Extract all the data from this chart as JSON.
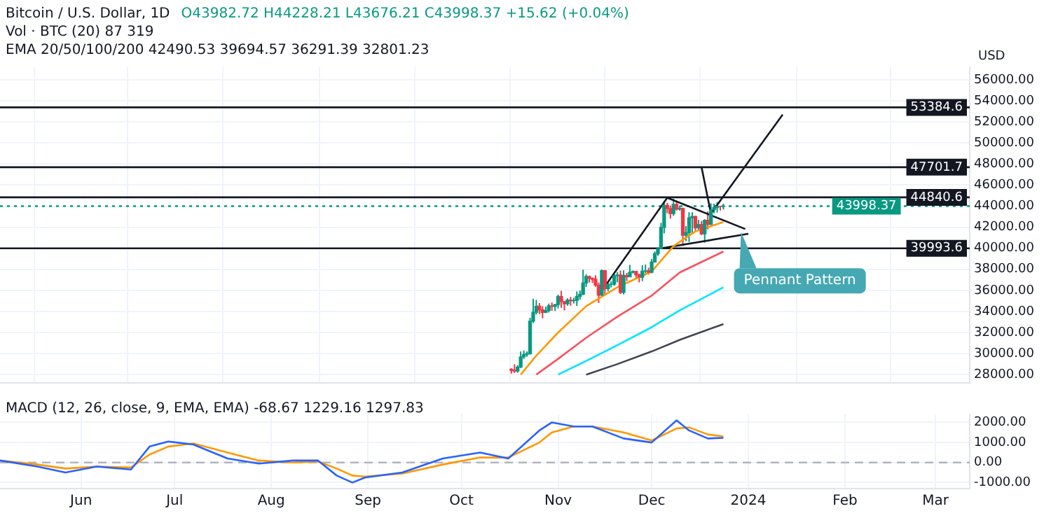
{
  "chart_data": [
    {
      "type": "candlestick",
      "title": "Bitcoin / U.S. Dollar, 1D",
      "subtitle": "O43982.72 H44228.21 L43676.21 C43998.37 +15.62 (+0.04%)",
      "annotations": [
        "Vol · BTC (20) 87 319",
        "EMA 20/50/100/200 42490.53 39694.57 36291.39 32801.23",
        {
          "text": "Pennant Pattern",
          "x": "2023-12-31",
          "y": 41830
        }
      ],
      "x": [
        "2023-10-17",
        "2023-10-18",
        "2023-10-19",
        "2023-10-20",
        "2023-10-21",
        "2023-10-22",
        "2023-10-23",
        "2023-10-24",
        "2023-10-25",
        "2023-10-26",
        "2023-10-27",
        "2023-10-28",
        "2023-10-29",
        "2023-10-30",
        "2023-10-31",
        "2023-11-01",
        "2023-11-02",
        "2023-11-03",
        "2023-11-04",
        "2023-11-05",
        "2023-11-06",
        "2023-11-07",
        "2023-11-08",
        "2023-11-09",
        "2023-11-10",
        "2023-11-11",
        "2023-11-12",
        "2023-11-13",
        "2023-11-14",
        "2023-11-15",
        "2023-11-16",
        "2023-11-17",
        "2023-11-18",
        "2023-11-19",
        "2023-11-20",
        "2023-11-21",
        "2023-11-22",
        "2023-11-23",
        "2023-11-24",
        "2023-11-25",
        "2023-11-26",
        "2023-11-27",
        "2023-11-28",
        "2023-11-29",
        "2023-11-30",
        "2023-12-01",
        "2023-12-02",
        "2023-12-03",
        "2023-12-04",
        "2023-12-05",
        "2023-12-06",
        "2023-12-07",
        "2023-12-08",
        "2023-12-09",
        "2023-12-10",
        "2023-12-11",
        "2023-12-12",
        "2023-12-13",
        "2023-12-14",
        "2023-12-15",
        "2023-12-16",
        "2023-12-17",
        "2023-12-18",
        "2023-12-19",
        "2023-12-20",
        "2023-12-21",
        "2023-12-22",
        "2023-12-23",
        "2023-12-24"
      ],
      "ohlc": [
        [
          28500,
          28610,
          28100,
          28410
        ],
        [
          28410,
          28980,
          28150,
          28330
        ],
        [
          28330,
          28900,
          28180,
          28720
        ],
        [
          28720,
          30200,
          28620,
          29680
        ],
        [
          29680,
          30300,
          29500,
          29910
        ],
        [
          29910,
          30200,
          29700,
          29990
        ],
        [
          29990,
          33400,
          29900,
          33080
        ],
        [
          33080,
          35200,
          32900,
          33920
        ],
        [
          33920,
          35100,
          33700,
          34500
        ],
        [
          34500,
          34800,
          33750,
          34150
        ],
        [
          34150,
          34500,
          33350,
          33900
        ],
        [
          33900,
          34450,
          33850,
          34090
        ],
        [
          34090,
          34750,
          33900,
          34530
        ],
        [
          34530,
          34850,
          34070,
          34480
        ],
        [
          34480,
          34720,
          34050,
          34650
        ],
        [
          34650,
          35600,
          34300,
          35420
        ],
        [
          35420,
          35950,
          34350,
          34940
        ],
        [
          34940,
          34950,
          34100,
          34730
        ],
        [
          34730,
          35250,
          34550,
          35080
        ],
        [
          35080,
          35380,
          34550,
          35020
        ],
        [
          35020,
          35300,
          34750,
          35050
        ],
        [
          35050,
          35900,
          34530,
          35430
        ],
        [
          35430,
          35990,
          35100,
          35630
        ],
        [
          35630,
          37970,
          35550,
          36700
        ],
        [
          36700,
          37530,
          36320,
          37320
        ],
        [
          37320,
          37400,
          36750,
          37140
        ],
        [
          37140,
          37230,
          36710,
          37060
        ],
        [
          37060,
          37430,
          36340,
          36500
        ],
        [
          36500,
          36750,
          34800,
          35550
        ],
        [
          35550,
          37980,
          35360,
          37880
        ],
        [
          37880,
          37930,
          35550,
          36160
        ],
        [
          36160,
          36850,
          35910,
          36590
        ],
        [
          36590,
          36870,
          36280,
          36590
        ],
        [
          36590,
          37540,
          36430,
          37390
        ],
        [
          37390,
          37750,
          36770,
          37470
        ],
        [
          37470,
          37880,
          35650,
          35810
        ],
        [
          35810,
          37900,
          35620,
          37420
        ],
        [
          37420,
          37660,
          36880,
          37290
        ],
        [
          37290,
          38420,
          37260,
          37720
        ],
        [
          37720,
          37890,
          37600,
          37800
        ],
        [
          37800,
          37830,
          37160,
          37480
        ],
        [
          37480,
          37600,
          36750,
          37250
        ],
        [
          37250,
          38400,
          36880,
          37830
        ],
        [
          37830,
          38450,
          37620,
          37860
        ],
        [
          37860,
          38150,
          37500,
          37720
        ],
        [
          37720,
          38990,
          37620,
          38690
        ],
        [
          38690,
          39700,
          38650,
          39480
        ],
        [
          39480,
          40000,
          39280,
          39970
        ],
        [
          39970,
          42420,
          39970,
          41990
        ],
        [
          41990,
          44490,
          41420,
          44080
        ],
        [
          44080,
          44300,
          43330,
          43770
        ],
        [
          43770,
          44050,
          42820,
          43290
        ],
        [
          43290,
          44700,
          43080,
          44170
        ],
        [
          44170,
          44400,
          43580,
          43720
        ],
        [
          43720,
          44050,
          43560,
          43790
        ],
        [
          43790,
          43850,
          40220,
          41240
        ],
        [
          41240,
          42100,
          40680,
          41490
        ],
        [
          41490,
          43430,
          40600,
          42890
        ],
        [
          42890,
          43420,
          41420,
          43020
        ],
        [
          43020,
          43090,
          41660,
          41940
        ],
        [
          41940,
          42700,
          41720,
          42260
        ],
        [
          42260,
          42600,
          41250,
          41370
        ],
        [
          41370,
          42760,
          40530,
          42660
        ],
        [
          42660,
          43500,
          41800,
          42270
        ],
        [
          42270,
          44280,
          42200,
          43660
        ],
        [
          43660,
          44240,
          43330,
          43860
        ],
        [
          43860,
          44400,
          43400,
          43990
        ],
        [
          43990,
          44020,
          43580,
          43982.72
        ],
        [
          43982.72,
          44228.21,
          43676.21,
          43998.37
        ]
      ],
      "series": [
        {
          "type": "line",
          "color": "#ff9800",
          "x": [
            "2023-10-20",
            "2023-10-25",
            "2023-11-01",
            "2023-11-10",
            "2023-11-20",
            "2023-12-01",
            "2023-12-08",
            "2023-12-15",
            "2023-12-24"
          ],
          "values": [
            28000,
            29800,
            32000,
            34500,
            36300,
            37800,
            40200,
            41600,
            42490.53
          ]
        },
        {
          "type": "line",
          "color": "#f7525f",
          "x": [
            "2023-10-25",
            "2023-11-01",
            "2023-11-10",
            "2023-11-20",
            "2023-12-01",
            "2023-12-10",
            "2023-12-24"
          ],
          "values": [
            28000,
            29500,
            31500,
            33500,
            35500,
            37700,
            39694.57
          ]
        },
        {
          "type": "line",
          "color": "#00e5ff",
          "x": [
            "2023-11-01",
            "2023-11-10",
            "2023-11-20",
            "2023-12-01",
            "2023-12-10",
            "2023-12-24"
          ],
          "values": [
            28000,
            29300,
            30800,
            32500,
            34100,
            36291.39
          ]
        },
        {
          "type": "line",
          "color": "#434651",
          "x": [
            "2023-11-10",
            "2023-11-20",
            "2023-12-01",
            "2023-12-10",
            "2023-12-24"
          ],
          "values": [
            28000,
            29000,
            30200,
            31300,
            32801.23
          ]
        },
        {
          "type": "line",
          "color": "#131722",
          "x": [
            "2023-11-14",
            "2023-12-06"
          ],
          "values": [
            35540,
            44800
          ]
        },
        {
          "type": "line",
          "color": "#131722",
          "x": [
            "2023-12-06",
            "2023-12-31"
          ],
          "values": [
            44800,
            41830
          ]
        },
        {
          "type": "line",
          "color": "#131722",
          "x": [
            "2023-12-04",
            "2024-01-01"
          ],
          "values": [
            40000,
            41370
          ]
        },
        {
          "type": "line",
          "color": "#131722",
          "x": [
            "2023-12-20",
            "2024-01-12"
          ],
          "values": [
            43300,
            52700
          ]
        },
        {
          "type": "line",
          "color": "#131722",
          "x": [
            "2023-12-17",
            "2023-12-20"
          ],
          "values": [
            47700,
            43300
          ]
        }
      ],
      "ref_lines": [
        {
          "axis": "y",
          "value": 53384.6,
          "label": "53384.6",
          "color": "#131722"
        },
        {
          "axis": "y",
          "value": 47701.7,
          "label": "47701.7",
          "color": "#131722"
        },
        {
          "axis": "y",
          "value": 44840.6,
          "label": "44840.6",
          "color": "#131722"
        },
        {
          "axis": "y",
          "value": 39993.6,
          "label": "39993.6",
          "color": "#131722"
        },
        {
          "axis": "y",
          "value": 43998.37,
          "label": "43998.37",
          "color": "#089981",
          "line_style": "dotted"
        }
      ],
      "xlim": [
        "2023-05-06",
        "2024-03-12"
      ],
      "xticks": [
        {
          "value": "2023-06-01",
          "label": null
        },
        {
          "value": "2023-07-01",
          "label": null
        },
        {
          "value": "2023-08-01",
          "label": null
        },
        {
          "value": "2023-09-01",
          "label": null
        },
        {
          "value": "2023-10-01",
          "label": null
        },
        {
          "value": "2023-11-01",
          "label": null
        },
        {
          "value": "2023-12-01",
          "label": null
        },
        {
          "value": "2024-01-01",
          "label": null
        },
        {
          "value": "2024-02-01",
          "label": null
        },
        {
          "value": "2024-03-01",
          "label": null
        }
      ],
      "ylim": [
        27200,
        57200
      ],
      "yticks": [
        {
          "value": 28000,
          "label": "28000.00"
        },
        {
          "value": 30000,
          "label": "30000.00"
        },
        {
          "value": 32000,
          "label": "32000.00"
        },
        {
          "value": 34000,
          "label": "34000.00"
        },
        {
          "value": 36000,
          "label": "36000.00"
        },
        {
          "value": 38000,
          "label": "38000.00"
        },
        {
          "value": 40000,
          "label": "40000.00"
        },
        {
          "value": 42000,
          "label": "42000.00"
        },
        {
          "value": 44000,
          "label": "44000.00"
        },
        {
          "value": 46000,
          "label": "46000.00"
        },
        {
          "value": 48000,
          "label": "48000.00"
        },
        {
          "value": 50000,
          "label": "50000.00"
        },
        {
          "value": 52000,
          "label": "52000.00"
        },
        {
          "value": 54000,
          "label": "54000.00"
        },
        {
          "value": 56000,
          "label": "56000.00"
        }
      ],
      "ylabel": "USD",
      "grid": true,
      "legend": false,
      "tick_labels": "y"
    },
    {
      "type": "line",
      "title": "MACD (12, 26, close, 9, EMA, EMA) -68.67 1229.16 1297.83",
      "series": [
        {
          "color": "#2962ff",
          "x": [
            "2023-05-06",
            "2023-05-18",
            "2023-05-27",
            "2023-06-06",
            "2023-06-17",
            "2023-06-23",
            "2023-06-29",
            "2023-07-07",
            "2023-07-18",
            "2023-07-28",
            "2023-08-08",
            "2023-08-16",
            "2023-08-22",
            "2023-08-27",
            "2023-08-31",
            "2023-09-12",
            "2023-09-25",
            "2023-10-07",
            "2023-10-16",
            "2023-10-26",
            "2023-10-30",
            "2023-11-06",
            "2023-11-12",
            "2023-11-22",
            "2023-12-01",
            "2023-12-09",
            "2023-12-13",
            "2023-12-19",
            "2023-12-24"
          ],
          "values": [
            100,
            -200,
            -500,
            -200,
            -350,
            800,
            1050,
            900,
            200,
            -50,
            100,
            100,
            -650,
            -1000,
            -750,
            -500,
            200,
            500,
            200,
            1600,
            2000,
            1800,
            1800,
            1200,
            1000,
            2100,
            1600,
            1200,
            1229.16
          ]
        },
        {
          "color": "#ff9800",
          "x": [
            "2023-05-06",
            "2023-05-18",
            "2023-05-27",
            "2023-06-06",
            "2023-06-17",
            "2023-06-23",
            "2023-06-29",
            "2023-07-07",
            "2023-07-18",
            "2023-07-28",
            "2023-08-08",
            "2023-08-16",
            "2023-08-22",
            "2023-08-27",
            "2023-08-31",
            "2023-09-12",
            "2023-09-25",
            "2023-10-07",
            "2023-10-16",
            "2023-10-26",
            "2023-10-30",
            "2023-11-06",
            "2023-11-12",
            "2023-11-22",
            "2023-12-01",
            "2023-12-09",
            "2023-12-13",
            "2023-12-19",
            "2023-12-24"
          ],
          "values": [
            100,
            -100,
            -300,
            -200,
            -250,
            400,
            800,
            950,
            500,
            100,
            0,
            50,
            -300,
            -650,
            -700,
            -550,
            -100,
            250,
            250,
            1000,
            1500,
            1800,
            1800,
            1500,
            1100,
            1700,
            1750,
            1400,
            1297.83
          ]
        }
      ],
      "ref_lines": [
        {
          "axis": "y",
          "value": 0,
          "label": null,
          "color": "#b2b5be",
          "line_style": "dashed"
        }
      ],
      "xlim": [
        "2023-05-06",
        "2024-03-12"
      ],
      "xticks": [
        {
          "value": "2023-06-01",
          "label": "Jun"
        },
        {
          "value": "2023-07-01",
          "label": "Jul"
        },
        {
          "value": "2023-08-01",
          "label": "Aug"
        },
        {
          "value": "2023-09-01",
          "label": "Sep"
        },
        {
          "value": "2023-10-01",
          "label": "Oct"
        },
        {
          "value": "2023-11-01",
          "label": "Nov"
        },
        {
          "value": "2023-12-01",
          "label": "Dec"
        },
        {
          "value": "2024-01-01",
          "label": "2024"
        },
        {
          "value": "2024-02-01",
          "label": "Feb"
        },
        {
          "value": "2024-03-01",
          "label": "Mar"
        }
      ],
      "ylim": [
        -1300,
        2400
      ],
      "yticks": [
        {
          "value": -1000,
          "label": "-1000.00"
        },
        {
          "value": 0,
          "label": "0.00"
        },
        {
          "value": 1000,
          "label": "1000.00"
        },
        {
          "value": 2000,
          "label": "2000.00"
        }
      ],
      "grid": true,
      "legend": false
    }
  ]
}
